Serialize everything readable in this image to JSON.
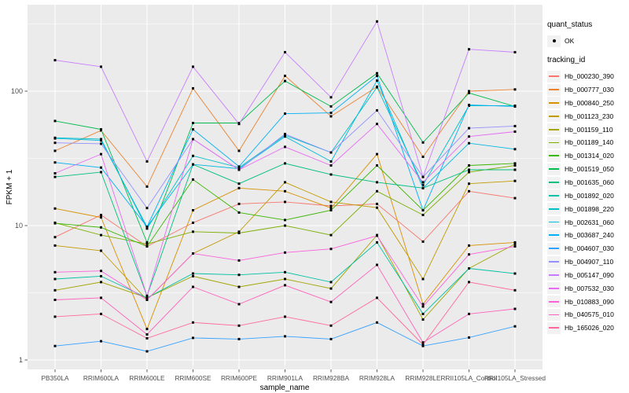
{
  "figure": {
    "background": "#FFFFFF",
    "panel_background": "#EBEBEB",
    "grid_color": "#FFFFFF",
    "tick_color": "#333333",
    "tick_label_color": "#4D4D4D",
    "marker_color": "#000000"
  },
  "legend": {
    "quant_status_title": "quant_status",
    "quant_status_items": [
      {
        "label": "OK",
        "marker": "black-point"
      }
    ],
    "tracking_id_title": "tracking_id",
    "key_background": "#F2F2F2"
  },
  "chart_data": {
    "type": "line",
    "title": "",
    "xlabel": "sample_name",
    "ylabel": "FPKM + 1",
    "y_scale": "log10",
    "y_ticks": [
      1,
      10,
      100
    ],
    "y_minor_ticks": [
      3.162,
      31.62,
      316.2
    ],
    "ylim": [
      0.85,
      440
    ],
    "grid": true,
    "legend_position": "right",
    "marker": "small-black-square",
    "x_categories": [
      "PB350LA",
      "RRIM600LA",
      "RRIM600LE",
      "RRIM600SE",
      "RRIM600PE",
      "RRIM901LA",
      "RRIM928BA",
      "RRIM928LA",
      "RRIM928LE",
      "RRII105LA_Control",
      "RRII105LA_Stressed"
    ],
    "series": [
      {
        "name": "Hb_000230_390",
        "color": "#F8766D",
        "values": [
          8.2,
          12,
          7.0,
          10.5,
          14.5,
          15,
          14,
          14.5,
          7.6,
          18,
          16
        ]
      },
      {
        "name": "Hb_000777_030",
        "color": "#EA8331",
        "values": [
          36,
          51,
          19.5,
          105,
          36,
          130,
          65,
          108,
          32.5,
          100,
          103
        ]
      },
      {
        "name": "Hb_000840_250",
        "color": "#D89000",
        "values": [
          13.4,
          11.5,
          1.7,
          13,
          19,
          18,
          13.5,
          34,
          2.6,
          7.1,
          7.5
        ]
      },
      {
        "name": "Hb_001123_230",
        "color": "#C09B00",
        "values": [
          7.1,
          6.5,
          2.8,
          6.2,
          9.0,
          21,
          15,
          13.6,
          4.0,
          20.5,
          21.5
        ]
      },
      {
        "name": "Hb_001159_110",
        "color": "#A3A500",
        "values": [
          3.3,
          3.8,
          2.9,
          4.2,
          3.5,
          4.0,
          3.4,
          8.5,
          2.0,
          4.8,
          7.3
        ]
      },
      {
        "name": "Hb_001189_140",
        "color": "#7CAE00",
        "values": [
          10.5,
          8.5,
          7.3,
          9.0,
          8.8,
          10,
          8.5,
          18,
          12,
          25,
          28
        ]
      },
      {
        "name": "Hb_001314_020",
        "color": "#39B600",
        "values": [
          10.4,
          9.7,
          7.0,
          22,
          12.5,
          11,
          13,
          28,
          13,
          28,
          29
        ]
      },
      {
        "name": "Hb_001519_050",
        "color": "#00BB4E",
        "values": [
          60,
          52,
          7.5,
          58,
          58,
          119,
          77,
          136,
          41.5,
          97,
          77
        ]
      },
      {
        "name": "Hb_001635_060",
        "color": "#00BF7D",
        "values": [
          23,
          25,
          3.0,
          28.5,
          20.5,
          29,
          24,
          21,
          19,
          26,
          26
        ]
      },
      {
        "name": "Hb_001892_020",
        "color": "#00C1A3",
        "values": [
          4.0,
          4.2,
          2.9,
          4.4,
          4.3,
          4.5,
          3.8,
          7.5,
          2.2,
          4.8,
          4.4
        ]
      },
      {
        "name": "Hb_001898_220",
        "color": "#00BFC4",
        "values": [
          45,
          44,
          9.5,
          33,
          27,
          47,
          35,
          107,
          20,
          78,
          78
        ]
      },
      {
        "name": "Hb_002631_060",
        "color": "#00BAE0",
        "values": [
          44.5,
          43,
          9.8,
          28.5,
          26.5,
          46,
          30,
          120,
          19,
          41,
          37
        ]
      },
      {
        "name": "Hb_003687_240",
        "color": "#00B0F6",
        "values": [
          29.5,
          27,
          9.8,
          52,
          27.5,
          68,
          69,
          130,
          13,
          79,
          77
        ]
      },
      {
        "name": "Hb_004607_030",
        "color": "#35A2FF",
        "values": [
          1.27,
          1.38,
          1.16,
          1.46,
          1.43,
          1.5,
          1.43,
          1.9,
          1.27,
          1.47,
          1.78
        ]
      },
      {
        "name": "Hb_004907_110",
        "color": "#9590FF",
        "values": [
          41.3,
          40.6,
          13.5,
          44,
          26,
          48,
          35,
          72,
          23,
          53,
          55
        ]
      },
      {
        "name": "Hb_005147_090",
        "color": "#C77CFF",
        "values": [
          170,
          152,
          30,
          152,
          57,
          195,
          90,
          330,
          23,
          205,
          195
        ]
      },
      {
        "name": "Hb_007532_030",
        "color": "#E76BF3",
        "values": [
          24.5,
          34,
          3.0,
          44,
          26,
          38.5,
          28,
          57,
          21,
          46,
          50
        ]
      },
      {
        "name": "Hb_010883_090",
        "color": "#FA62DB",
        "values": [
          4.5,
          4.6,
          2.8,
          6.2,
          5.5,
          6.3,
          6.7,
          8.4,
          2.5,
          6.1,
          7.0
        ]
      },
      {
        "name": "Hb_040575_010",
        "color": "#FF62BC",
        "values": [
          2.8,
          2.9,
          1.55,
          3.5,
          2.6,
          3.6,
          2.7,
          5.1,
          1.35,
          2.2,
          2.4
        ]
      },
      {
        "name": "Hb_165026_020",
        "color": "#FF6A98",
        "values": [
          2.1,
          2.2,
          1.45,
          1.9,
          1.8,
          2.1,
          1.8,
          2.9,
          1.3,
          3.8,
          3.3
        ]
      }
    ]
  }
}
